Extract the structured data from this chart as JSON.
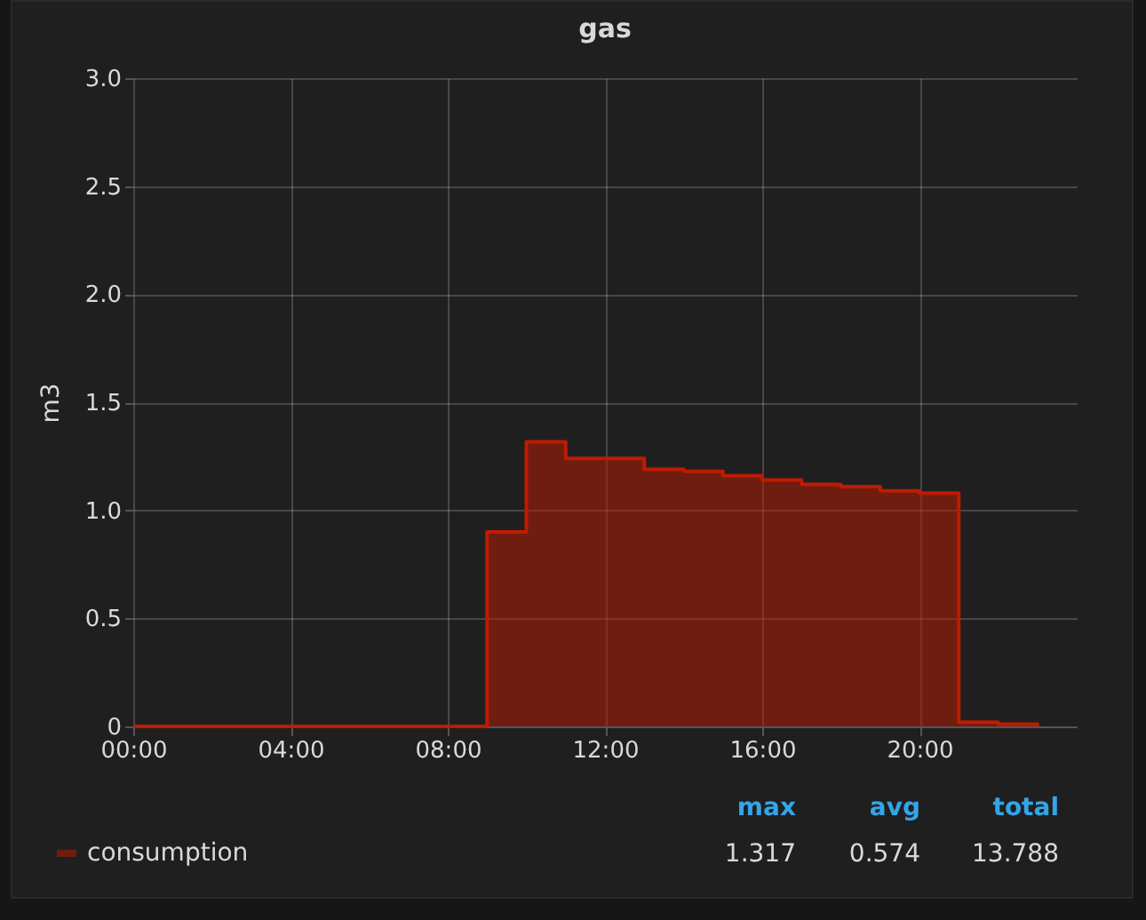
{
  "chart_data": {
    "type": "step",
    "title": "gas",
    "ylabel": "m3",
    "x": [
      0,
      1,
      2,
      3,
      4,
      5,
      6,
      7,
      8,
      9,
      10,
      11,
      12,
      13,
      14,
      15,
      16,
      17,
      18,
      19,
      20,
      21,
      22,
      23
    ],
    "series": [
      {
        "name": "consumption",
        "color": "#bf1b00",
        "values": [
          0,
          0,
          0,
          0,
          0,
          0,
          0,
          0,
          0,
          0.9,
          1.317,
          1.24,
          1.24,
          1.19,
          1.18,
          1.16,
          1.14,
          1.12,
          1.11,
          1.09,
          1.08,
          0.02,
          0.01,
          0
        ]
      }
    ],
    "xlim": [
      0,
      24
    ],
    "xticks": [
      {
        "value": 0,
        "label": "00:00"
      },
      {
        "value": 4,
        "label": "04:00"
      },
      {
        "value": 8,
        "label": "08:00"
      },
      {
        "value": 12,
        "label": "12:00"
      },
      {
        "value": 16,
        "label": "16:00"
      },
      {
        "value": 20,
        "label": "20:00"
      }
    ],
    "ylim": [
      0,
      3
    ],
    "yticks": [
      0,
      {
        "value": 0.5,
        "label": "0.5"
      },
      {
        "value": 1,
        "label": "1.0"
      },
      {
        "value": 1.5,
        "label": "1.5"
      },
      {
        "value": 2,
        "label": "2.0"
      },
      {
        "value": 2.5,
        "label": "2.5"
      },
      {
        "value": 3,
        "label": "3.0"
      }
    ],
    "grid": true,
    "legend": "bottom left",
    "annotations": [
      "max",
      "avg",
      "total",
      "1.317",
      "0.574",
      "13.788"
    ]
  }
}
